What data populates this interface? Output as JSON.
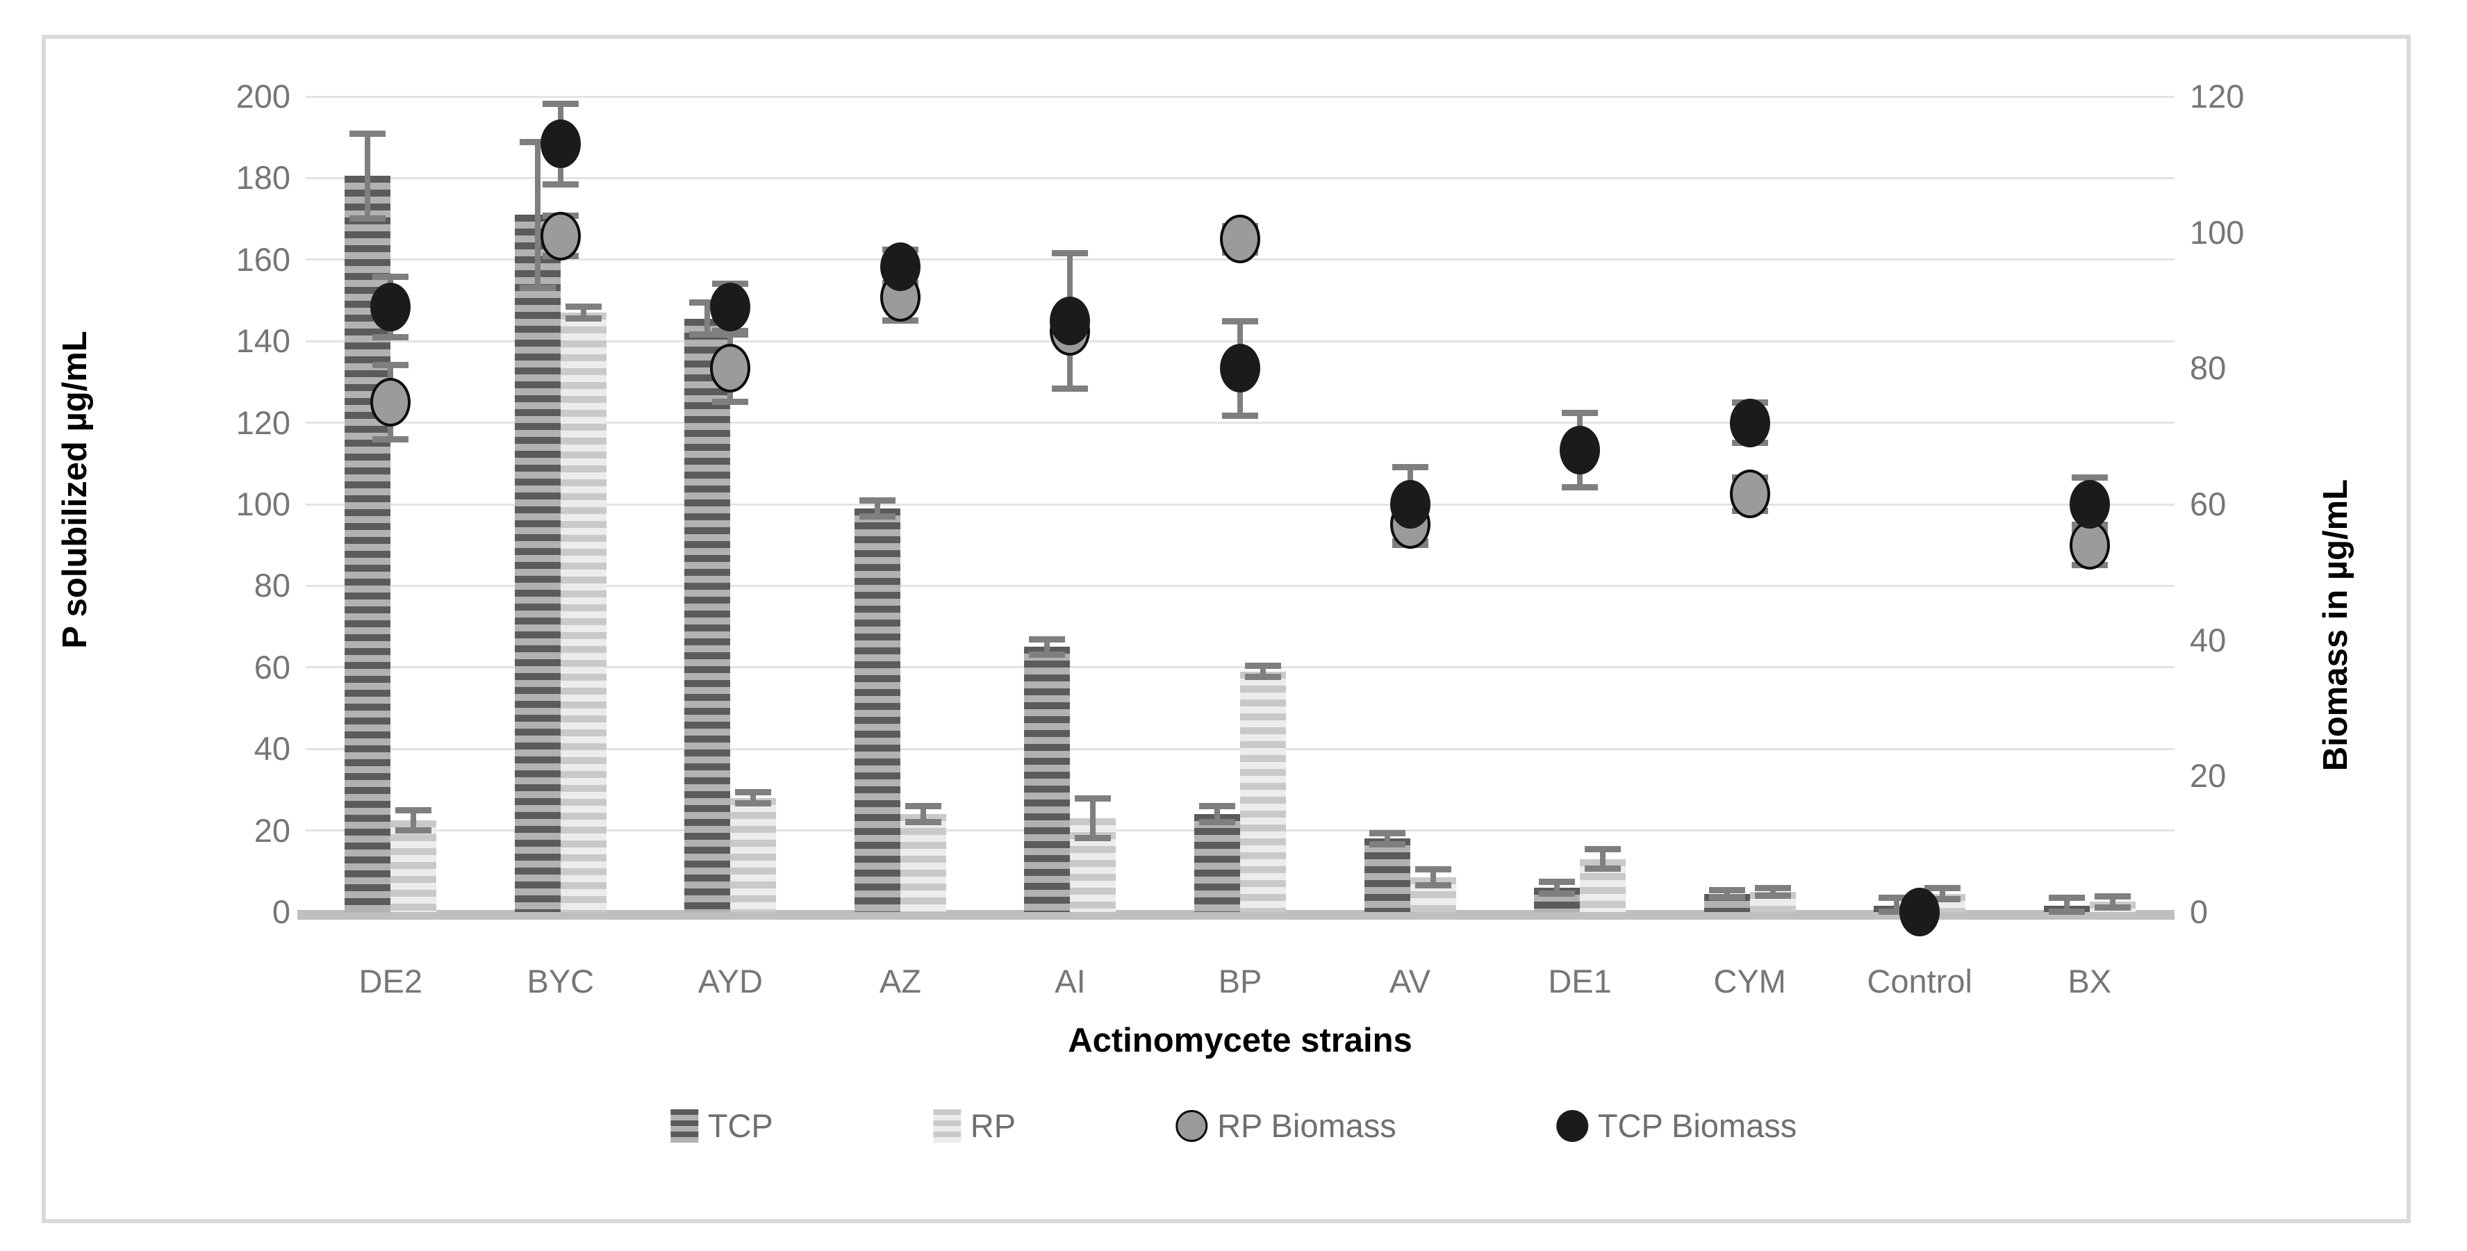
{
  "figure": {
    "type_label": "combo bar + scatter chart, dual axis, grayscale Excel style"
  },
  "chart_data": {
    "type": "combo-bar-scatter",
    "categories": [
      "DE2",
      "BYC",
      "AYD",
      "AZ",
      "AI",
      "BP",
      "AV",
      "DE1",
      "CYM",
      "Control",
      "BX"
    ],
    "x_axis": {
      "title": "Actinomycete strains"
    },
    "left_axis": {
      "title": "P solubilized µg/mL",
      "min": 0,
      "max": 200,
      "step": 20,
      "tick_labels": [
        "0",
        "20",
        "40",
        "60",
        "80",
        "100",
        "120",
        "140",
        "160",
        "180",
        "200"
      ]
    },
    "right_axis": {
      "title": "Biomass in µg/mL",
      "min": 0,
      "max": 120,
      "step": 20,
      "tick_labels": [
        "0",
        "20",
        "40",
        "60",
        "80",
        "100",
        "120"
      ]
    },
    "grid": "horizontal-on",
    "legend_position": "bottom",
    "series": [
      {
        "name": "TCP",
        "type": "bar",
        "axis": "left",
        "values": [
          180.5,
          171,
          145.5,
          99,
          65,
          24,
          18,
          6,
          4.5,
          1.5,
          1.5
        ],
        "errors": [
          10.5,
          18,
          4,
          2,
          2,
          2,
          1.5,
          1.5,
          1,
          2,
          2
        ]
      },
      {
        "name": "RP",
        "type": "bar",
        "axis": "left",
        "values": [
          22.5,
          147,
          28,
          24,
          23,
          59,
          8.5,
          13,
          5,
          4.5,
          2.5
        ],
        "errors": [
          2.5,
          1.5,
          1.5,
          2,
          5,
          1.5,
          2,
          2.5,
          1,
          1.5,
          1.5
        ]
      },
      {
        "name": "RP Biomass",
        "type": "scatter",
        "axis": "right",
        "values": [
          75,
          99.5,
          80,
          90.5,
          85.5,
          99,
          57,
          null,
          61.5,
          null,
          54
        ],
        "errors": [
          5.5,
          3,
          5,
          3.5,
          0,
          2,
          3,
          0,
          2.5,
          0,
          3
        ]
      },
      {
        "name": "TCP Biomass",
        "type": "scatter",
        "axis": "right",
        "values": [
          89,
          113,
          89,
          95,
          87,
          80,
          60,
          68,
          72,
          0,
          60
        ],
        "errors": [
          4.5,
          6,
          3.5,
          2.5,
          10,
          7,
          5.5,
          5.5,
          3,
          0,
          4
        ]
      }
    ],
    "legend": [
      {
        "label": "TCP"
      },
      {
        "label": "RP"
      },
      {
        "label": "RP Biomass"
      },
      {
        "label": "TCP Biomass"
      }
    ],
    "colors": {
      "tcp_bar_dark": "#5b5b5b",
      "tcp_bar_light": "#b2b2b2",
      "rp_bar_dark": "#c9c9c9",
      "rp_bar_light": "#ececec",
      "tcp_biomass_dot": "#1b1b1b",
      "rp_biomass_dot": "#9b9b9b",
      "error_bar": "#7f7f7f",
      "gridline": "#e3e3e3",
      "axis_text": "#767676",
      "frame_border": "#dadada"
    }
  }
}
